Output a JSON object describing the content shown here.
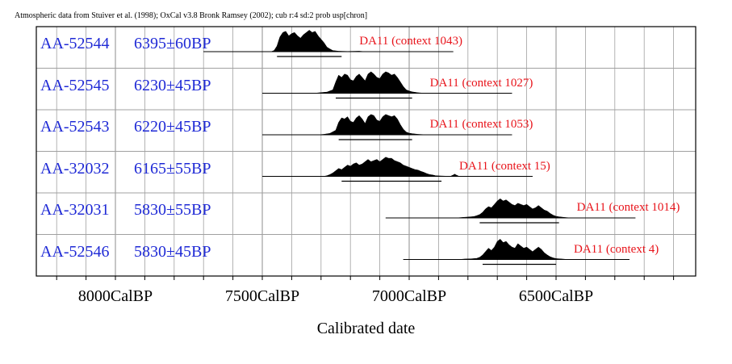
{
  "header": {
    "caption": "Atmospheric data from Stuiver et al. (1998); OxCal v3.8 Bronk Ramsey (2002); cub r:4 sd:2 prob usp[chron]"
  },
  "chart_data": {
    "type": "area",
    "title": "",
    "xlabel": "Calibrated date",
    "ylabel": "",
    "x_unit": "CalBP",
    "xlim": [
      8300,
      6050
    ],
    "x_ticks": [
      8000,
      7500,
      7000,
      6500
    ],
    "x_tick_labels": [
      "8000CalBP",
      "7500CalBP",
      "7000CalBP",
      "6500CalBP"
    ],
    "grid": true,
    "colors": {
      "fill": "#000000",
      "sample_text": "#1f2ad6",
      "context_text": "#e8131a",
      "grid": "#999999"
    },
    "series": [
      {
        "lab_code": "AA-52544",
        "age": "6395±60BP",
        "label": "DA11 (context 1043)",
        "baseline": [
          7700,
          6850
        ],
        "range_68": [
          7450,
          7230
        ],
        "density": [
          [
            7700,
            0
          ],
          [
            7470,
            0
          ],
          [
            7460,
            0.05
          ],
          [
            7450,
            0.25
          ],
          [
            7440,
            0.65
          ],
          [
            7430,
            0.85
          ],
          [
            7420,
            0.9
          ],
          [
            7410,
            0.7
          ],
          [
            7400,
            0.8
          ],
          [
            7390,
            0.85
          ],
          [
            7380,
            0.7
          ],
          [
            7370,
            0.6
          ],
          [
            7360,
            0.75
          ],
          [
            7350,
            0.85
          ],
          [
            7340,
            0.95
          ],
          [
            7330,
            0.85
          ],
          [
            7320,
            0.9
          ],
          [
            7310,
            0.7
          ],
          [
            7300,
            0.55
          ],
          [
            7290,
            0.4
          ],
          [
            7280,
            0.2
          ],
          [
            7270,
            0.12
          ],
          [
            7260,
            0.05
          ],
          [
            7240,
            0.02
          ],
          [
            7210,
            0.01
          ],
          [
            7170,
            0.02
          ],
          [
            7150,
            0
          ],
          [
            6850,
            0
          ]
        ]
      },
      {
        "lab_code": "AA-52545",
        "age": "6230±45BP",
        "label": "DA11 (context 1027)",
        "baseline": [
          7500,
          6650
        ],
        "range_68": [
          7250,
          6990
        ],
        "density": [
          [
            7500,
            0
          ],
          [
            7320,
            0
          ],
          [
            7300,
            0.03
          ],
          [
            7280,
            0.05
          ],
          [
            7260,
            0.15
          ],
          [
            7250,
            0.5
          ],
          [
            7240,
            0.8
          ],
          [
            7230,
            0.7
          ],
          [
            7220,
            0.85
          ],
          [
            7210,
            0.8
          ],
          [
            7200,
            0.6
          ],
          [
            7190,
            0.55
          ],
          [
            7180,
            0.75
          ],
          [
            7170,
            0.85
          ],
          [
            7160,
            0.7
          ],
          [
            7150,
            0.55
          ],
          [
            7140,
            0.85
          ],
          [
            7130,
            0.95
          ],
          [
            7120,
            0.85
          ],
          [
            7110,
            0.7
          ],
          [
            7100,
            0.65
          ],
          [
            7090,
            0.85
          ],
          [
            7080,
            0.95
          ],
          [
            7070,
            0.9
          ],
          [
            7060,
            0.8
          ],
          [
            7050,
            0.85
          ],
          [
            7040,
            0.7
          ],
          [
            7030,
            0.5
          ],
          [
            7020,
            0.3
          ],
          [
            7010,
            0.15
          ],
          [
            7000,
            0.1
          ],
          [
            6990,
            0.06
          ],
          [
            6970,
            0.02
          ],
          [
            6950,
            0
          ],
          [
            6650,
            0
          ]
        ]
      },
      {
        "lab_code": "AA-52543",
        "age": "6220±45BP",
        "label": "DA11 (context 1053)",
        "baseline": [
          7500,
          6650
        ],
        "range_68": [
          7240,
          6990
        ],
        "density": [
          [
            7500,
            0
          ],
          [
            7310,
            0
          ],
          [
            7290,
            0.02
          ],
          [
            7270,
            0.06
          ],
          [
            7250,
            0.2
          ],
          [
            7240,
            0.55
          ],
          [
            7230,
            0.75
          ],
          [
            7220,
            0.7
          ],
          [
            7210,
            0.8
          ],
          [
            7200,
            0.6
          ],
          [
            7190,
            0.55
          ],
          [
            7180,
            0.75
          ],
          [
            7170,
            0.85
          ],
          [
            7160,
            0.7
          ],
          [
            7150,
            0.5
          ],
          [
            7140,
            0.8
          ],
          [
            7130,
            0.9
          ],
          [
            7120,
            0.85
          ],
          [
            7110,
            0.65
          ],
          [
            7100,
            0.6
          ],
          [
            7090,
            0.8
          ],
          [
            7080,
            0.9
          ],
          [
            7070,
            0.85
          ],
          [
            7060,
            0.8
          ],
          [
            7050,
            0.85
          ],
          [
            7040,
            0.7
          ],
          [
            7030,
            0.45
          ],
          [
            7020,
            0.25
          ],
          [
            7010,
            0.12
          ],
          [
            7000,
            0.07
          ],
          [
            6990,
            0.05
          ],
          [
            6970,
            0.02
          ],
          [
            6940,
            0
          ],
          [
            6650,
            0
          ]
        ]
      },
      {
        "lab_code": "AA-32032",
        "age": "6165±55BP",
        "label": "DA11 (context 15)",
        "baseline": [
          7500,
          6580
        ],
        "range_68": [
          7230,
          6890
        ],
        "density": [
          [
            7500,
            0
          ],
          [
            7290,
            0
          ],
          [
            7280,
            0.03
          ],
          [
            7270,
            0.08
          ],
          [
            7260,
            0.15
          ],
          [
            7250,
            0.25
          ],
          [
            7240,
            0.35
          ],
          [
            7230,
            0.3
          ],
          [
            7220,
            0.4
          ],
          [
            7210,
            0.5
          ],
          [
            7200,
            0.45
          ],
          [
            7190,
            0.55
          ],
          [
            7180,
            0.6
          ],
          [
            7170,
            0.5
          ],
          [
            7160,
            0.55
          ],
          [
            7150,
            0.65
          ],
          [
            7140,
            0.75
          ],
          [
            7130,
            0.65
          ],
          [
            7120,
            0.7
          ],
          [
            7110,
            0.75
          ],
          [
            7100,
            0.65
          ],
          [
            7090,
            0.75
          ],
          [
            7080,
            0.85
          ],
          [
            7070,
            0.8
          ],
          [
            7060,
            0.8
          ],
          [
            7050,
            0.7
          ],
          [
            7040,
            0.65
          ],
          [
            7030,
            0.6
          ],
          [
            7020,
            0.5
          ],
          [
            7010,
            0.45
          ],
          [
            7000,
            0.4
          ],
          [
            6990,
            0.35
          ],
          [
            6980,
            0.3
          ],
          [
            6970,
            0.28
          ],
          [
            6960,
            0.22
          ],
          [
            6950,
            0.18
          ],
          [
            6940,
            0.12
          ],
          [
            6930,
            0.08
          ],
          [
            6920,
            0.06
          ],
          [
            6910,
            0.03
          ],
          [
            6900,
            0.02
          ],
          [
            6880,
            0.01
          ],
          [
            6860,
            0
          ],
          [
            6850,
            0.06
          ],
          [
            6845,
            0.1
          ],
          [
            6840,
            0.06
          ],
          [
            6830,
            0
          ],
          [
            6580,
            0
          ]
        ]
      },
      {
        "lab_code": "AA-32031",
        "age": "5830±55BP",
        "label": "DA11 (context 1014)",
        "baseline": [
          7080,
          6230
        ],
        "range_68": [
          6760,
          6490
        ],
        "density": [
          [
            7080,
            0
          ],
          [
            6840,
            0
          ],
          [
            6820,
            0.02
          ],
          [
            6800,
            0.04
          ],
          [
            6780,
            0.06
          ],
          [
            6770,
            0.1
          ],
          [
            6760,
            0.15
          ],
          [
            6750,
            0.25
          ],
          [
            6740,
            0.4
          ],
          [
            6730,
            0.5
          ],
          [
            6720,
            0.45
          ],
          [
            6710,
            0.6
          ],
          [
            6700,
            0.75
          ],
          [
            6690,
            0.85
          ],
          [
            6680,
            0.75
          ],
          [
            6670,
            0.8
          ],
          [
            6660,
            0.7
          ],
          [
            6650,
            0.6
          ],
          [
            6640,
            0.55
          ],
          [
            6630,
            0.65
          ],
          [
            6620,
            0.6
          ],
          [
            6610,
            0.55
          ],
          [
            6600,
            0.6
          ],
          [
            6590,
            0.5
          ],
          [
            6580,
            0.4
          ],
          [
            6570,
            0.45
          ],
          [
            6560,
            0.55
          ],
          [
            6550,
            0.45
          ],
          [
            6540,
            0.35
          ],
          [
            6530,
            0.3
          ],
          [
            6520,
            0.2
          ],
          [
            6510,
            0.12
          ],
          [
            6500,
            0.07
          ],
          [
            6490,
            0.05
          ],
          [
            6470,
            0.02
          ],
          [
            6450,
            0
          ],
          [
            6230,
            0
          ]
        ]
      },
      {
        "lab_code": "AA-52546",
        "age": "5830±45BP",
        "label": "DA11 (context 4)",
        "baseline": [
          7020,
          6250
        ],
        "range_68": [
          6750,
          6500
        ],
        "density": [
          [
            7020,
            0
          ],
          [
            6830,
            0
          ],
          [
            6810,
            0.02
          ],
          [
            6790,
            0.03
          ],
          [
            6770,
            0.05
          ],
          [
            6760,
            0.1
          ],
          [
            6750,
            0.2
          ],
          [
            6740,
            0.35
          ],
          [
            6730,
            0.5
          ],
          [
            6720,
            0.4
          ],
          [
            6710,
            0.55
          ],
          [
            6700,
            0.8
          ],
          [
            6690,
            0.9
          ],
          [
            6680,
            0.75
          ],
          [
            6670,
            0.8
          ],
          [
            6660,
            0.65
          ],
          [
            6650,
            0.55
          ],
          [
            6640,
            0.5
          ],
          [
            6630,
            0.7
          ],
          [
            6620,
            0.6
          ],
          [
            6610,
            0.5
          ],
          [
            6600,
            0.55
          ],
          [
            6590,
            0.45
          ],
          [
            6580,
            0.35
          ],
          [
            6570,
            0.45
          ],
          [
            6560,
            0.55
          ],
          [
            6550,
            0.45
          ],
          [
            6540,
            0.3
          ],
          [
            6530,
            0.2
          ],
          [
            6520,
            0.12
          ],
          [
            6510,
            0.07
          ],
          [
            6500,
            0.04
          ],
          [
            6480,
            0.02
          ],
          [
            6460,
            0
          ],
          [
            6250,
            0
          ]
        ]
      }
    ]
  }
}
